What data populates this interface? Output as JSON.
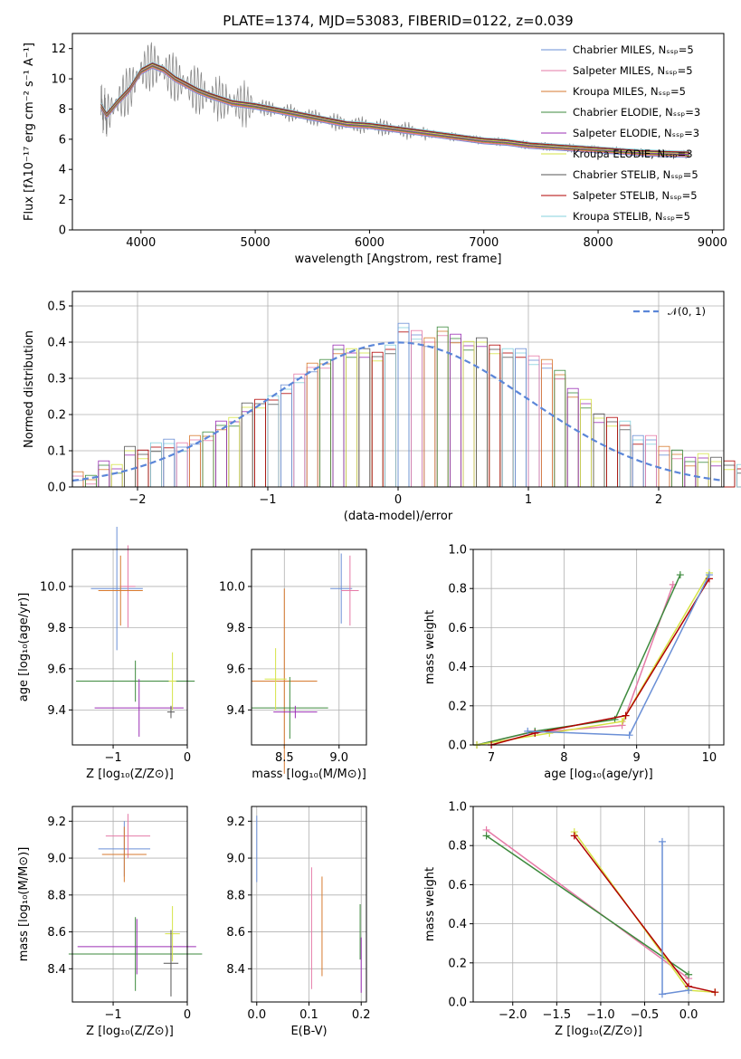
{
  "colors": [
    "#6a8fd6",
    "#e57aa7",
    "#d77a2f",
    "#3d8a3d",
    "#9b2fb5",
    "#d6e346",
    "#555555",
    "#b00000",
    "#84d0dd"
  ],
  "chart_data": [
    {
      "id": "spectrum",
      "type": "line",
      "title": "PLATE=1374, MJD=53083, FIBERID=0122, z=0.039",
      "xlabel": "wavelength [Angstrom, rest frame]",
      "ylabel": "Flux [fλ10⁻¹⁷ erg cm⁻² s⁻¹ A⁻¹]",
      "xlim": [
        3400,
        9100
      ],
      "ylim": [
        0,
        13
      ],
      "xticks": [
        "4000",
        "5000",
        "6000",
        "7000",
        "8000",
        "9000"
      ],
      "yticks": [
        "0",
        "2",
        "4",
        "6",
        "8",
        "10",
        "12"
      ],
      "legend_position": "top-right",
      "legend": [
        "Chabrier MILES, Nₛₛₚ=5",
        "Salpeter MILES, Nₛₛₚ=5",
        "Kroupa MILES, Nₛₛₚ=5",
        "Chabrier ELODIE, Nₛₛₚ=3",
        "Salpeter ELODIE, Nₛₛₚ=3",
        "Kroupa ELODIE, Nₛₛₚ=3",
        "Chabrier STELIB, Nₛₛₚ=5",
        "Salpeter STELIB, Nₛₛₚ=5",
        "Kroupa STELIB, Nₛₛₚ=5"
      ],
      "model_x": [
        3650,
        3700,
        3800,
        3900,
        4000,
        4100,
        4200,
        4300,
        4400,
        4500,
        4600,
        4800,
        5000,
        5200,
        5400,
        5600,
        5800,
        6000,
        6200,
        6400,
        6600,
        6800,
        7000,
        7200,
        7400,
        7600,
        7800,
        8000,
        8200,
        8400,
        8600,
        8800
      ],
      "model_y": [
        8.2,
        7.6,
        8.5,
        9.3,
        10.5,
        10.9,
        10.6,
        10.0,
        9.6,
        9.2,
        8.9,
        8.4,
        8.2,
        7.9,
        7.6,
        7.3,
        7.0,
        6.9,
        6.7,
        6.5,
        6.3,
        6.1,
        5.9,
        5.8,
        5.6,
        5.5,
        5.4,
        5.3,
        5.2,
        5.1,
        5.05,
        5.0
      ]
    },
    {
      "id": "residuals",
      "type": "bar",
      "xlabel": "(data-model)/error",
      "ylabel": "Normed distribution",
      "xlim": [
        -2.5,
        2.5
      ],
      "ylim": [
        0,
        0.54
      ],
      "xticks": [
        "−2",
        "−1",
        "0",
        "1",
        "2"
      ],
      "yticks": [
        "0.0",
        "0.1",
        "0.2",
        "0.3",
        "0.4",
        "0.5"
      ],
      "legend": [
        "𝒩(0, 1)"
      ],
      "legend_position": "top-right",
      "bin_width": 0.1,
      "bin_start": -2.5,
      "values": [
        0.03,
        0.02,
        0.06,
        0.05,
        0.1,
        0.09,
        0.11,
        0.12,
        0.11,
        0.13,
        0.14,
        0.17,
        0.18,
        0.22,
        0.23,
        0.24,
        0.27,
        0.3,
        0.33,
        0.34,
        0.38,
        0.37,
        0.37,
        0.36,
        0.38,
        0.44,
        0.42,
        0.4,
        0.43,
        0.41,
        0.39,
        0.4,
        0.38,
        0.37,
        0.37,
        0.35,
        0.34,
        0.31,
        0.26,
        0.23,
        0.19,
        0.18,
        0.17,
        0.13,
        0.13,
        0.1,
        0.09,
        0.07,
        0.08,
        0.07,
        0.06,
        0.05,
        0.05,
        0.03,
        0.03,
        0.03,
        0.02,
        0.02,
        0.02,
        0.02
      ]
    },
    {
      "id": "age-vs-Z",
      "type": "scatter",
      "xlabel": "Z [log₁₀(Z/Z⊙)]",
      "ylabel": "age  [log₁₀(age/yr)]",
      "xlim": [
        -1.55,
        0
      ],
      "ylim": [
        9.23,
        10.18
      ],
      "xticks": [
        "−1",
        "0"
      ],
      "yticks": [
        "9.4",
        "9.6",
        "9.8",
        "10.0"
      ],
      "points": [
        {
          "x": -0.95,
          "y": 9.99,
          "xerr": 0.35,
          "yerr": 0.3
        },
        {
          "x": -0.8,
          "y": 10.0,
          "xerr": 0.1,
          "yerr": 0.2
        },
        {
          "x": -0.9,
          "y": 9.98,
          "xerr": 0.3,
          "yerr": 0.17
        },
        {
          "x": -0.7,
          "y": 9.54,
          "xerr": 0.8,
          "yerr": 0.1
        },
        {
          "x": -0.65,
          "y": 9.41,
          "xerr": 0.6,
          "yerr": 0.14
        },
        {
          "x": -0.2,
          "y": 9.54,
          "xerr": 0.05,
          "yerr": 0.14
        },
        {
          "x": -0.22,
          "y": 9.39,
          "xerr": 0.05,
          "yerr": 0.03
        }
      ]
    },
    {
      "id": "age-vs-mass",
      "type": "scatter",
      "xlabel": "mass [log₁₀(M/M⊙)]",
      "ylabel": "",
      "xlim": [
        8.2,
        9.25
      ],
      "ylim": [
        9.23,
        10.18
      ],
      "xticks": [
        "8.5",
        "9.0"
      ],
      "yticks": [
        "9.4",
        "9.6",
        "9.8",
        "10.0"
      ],
      "points": [
        {
          "x": 9.02,
          "y": 9.99,
          "xerr": 0.1,
          "yerr": 0.17
        },
        {
          "x": 9.1,
          "y": 9.98,
          "xerr": 0.08,
          "yerr": 0.17
        },
        {
          "x": 8.5,
          "y": 9.54,
          "xerr": 0.3,
          "yerr": 0.45
        },
        {
          "x": 8.55,
          "y": 9.41,
          "xerr": 0.35,
          "yerr": 0.15
        },
        {
          "x": 8.6,
          "y": 9.39,
          "xerr": 0.2,
          "yerr": 0.03
        },
        {
          "x": 8.42,
          "y": 9.55,
          "xerr": 0.1,
          "yerr": 0.15
        }
      ]
    },
    {
      "id": "massweight-vs-age",
      "type": "line",
      "xlabel": "age  [log₁₀(age/yr)]",
      "ylabel": "mass weight",
      "xlim": [
        6.75,
        10.2
      ],
      "ylim": [
        0,
        1
      ],
      "xticks": [
        "7",
        "8",
        "9",
        "10"
      ],
      "yticks": [
        "0.0",
        "0.2",
        "0.4",
        "0.6",
        "0.8",
        "1.0"
      ],
      "series": [
        {
          "x": [
            6.8,
            7.5,
            8.8,
            9.5
          ],
          "y": [
            0.0,
            0.06,
            0.1,
            0.82
          ]
        },
        {
          "x": [
            6.8,
            7.6,
            8.7,
            9.6
          ],
          "y": [
            0.0,
            0.07,
            0.13,
            0.87
          ]
        },
        {
          "x": [
            6.8,
            7.8,
            8.8,
            10.0
          ],
          "y": [
            0.0,
            0.06,
            0.12,
            0.88
          ]
        },
        {
          "x": [
            7.0,
            7.6,
            8.85,
            10.0
          ],
          "y": [
            0.0,
            0.06,
            0.15,
            0.85
          ]
        },
        {
          "x": [
            7.5,
            8.9,
            10.0
          ],
          "y": [
            0.07,
            0.05,
            0.87
          ]
        }
      ]
    },
    {
      "id": "mass-vs-Z",
      "type": "scatter",
      "xlabel": "Z [log₁₀(Z/Z⊙)]",
      "ylabel": "mass [log₁₀(M/M⊙)]",
      "xlim": [
        -1.55,
        0
      ],
      "ylim": [
        8.22,
        9.28
      ],
      "xticks": [
        "−1",
        "0"
      ],
      "yticks": [
        "8.4",
        "8.6",
        "8.8",
        "9.0",
        "9.2"
      ],
      "points": [
        {
          "x": -0.85,
          "y": 9.05,
          "xerr": 0.35,
          "yerr": 0.15
        },
        {
          "x": -0.8,
          "y": 9.12,
          "xerr": 0.3,
          "yerr": 0.12
        },
        {
          "x": -0.85,
          "y": 9.02,
          "xerr": 0.3,
          "yerr": 0.15
        },
        {
          "x": -0.7,
          "y": 8.48,
          "xerr": 0.9,
          "yerr": 0.2
        },
        {
          "x": -0.68,
          "y": 8.52,
          "xerr": 0.8,
          "yerr": 0.15
        },
        {
          "x": -0.2,
          "y": 8.59,
          "xerr": 0.1,
          "yerr": 0.15
        },
        {
          "x": -0.22,
          "y": 8.43,
          "xerr": 0.1,
          "yerr": 0.18
        }
      ]
    },
    {
      "id": "mass-vs-EBV",
      "type": "scatter",
      "xlabel": "E(B-V)",
      "ylabel": "",
      "xlim": [
        -0.01,
        0.21
      ],
      "ylim": [
        8.22,
        9.28
      ],
      "xticks": [
        "0.0",
        "0.1",
        "0.2"
      ],
      "yticks": [
        "8.4",
        "8.6",
        "8.8",
        "9.0",
        "9.2"
      ],
      "points": [
        {
          "x": 0.0,
          "y": 9.05,
          "xerr": 0.0,
          "yerr": 0.18
        },
        {
          "x": 0.105,
          "y": 8.62,
          "xerr": 0.0,
          "yerr": 0.33
        },
        {
          "x": 0.125,
          "y": 8.63,
          "xerr": 0.0,
          "yerr": 0.27
        },
        {
          "x": 0.198,
          "y": 8.6,
          "xerr": 0.0,
          "yerr": 0.15
        },
        {
          "x": 0.2,
          "y": 8.42,
          "xerr": 0.0,
          "yerr": 0.15
        }
      ]
    },
    {
      "id": "massweight-vs-Z",
      "type": "line",
      "xlabel": "Z [log₁₀(Z/Z⊙)]",
      "ylabel": "mass weight",
      "xlim": [
        -2.45,
        0.4
      ],
      "ylim": [
        0,
        1
      ],
      "xticks": [
        "−2.0",
        "−1.5",
        "−1.0",
        "−0.5",
        "0.0"
      ],
      "yticks": [
        "0.0",
        "0.2",
        "0.4",
        "0.6",
        "0.8",
        "1.0"
      ],
      "series": [
        {
          "x": [
            -2.3,
            0.0
          ],
          "y": [
            0.88,
            0.12
          ]
        },
        {
          "x": [
            -2.3,
            0.0
          ],
          "y": [
            0.85,
            0.14
          ]
        },
        {
          "x": [
            -1.3,
            0.0,
            0.3
          ],
          "y": [
            0.87,
            0.06,
            0.05
          ]
        },
        {
          "x": [
            -1.3,
            0.0,
            0.3
          ],
          "y": [
            0.85,
            0.08,
            0.05
          ]
        },
        {
          "x": [
            -0.3,
            -0.3,
            0.0
          ],
          "y": [
            0.82,
            0.04,
            0.06
          ]
        }
      ]
    }
  ]
}
